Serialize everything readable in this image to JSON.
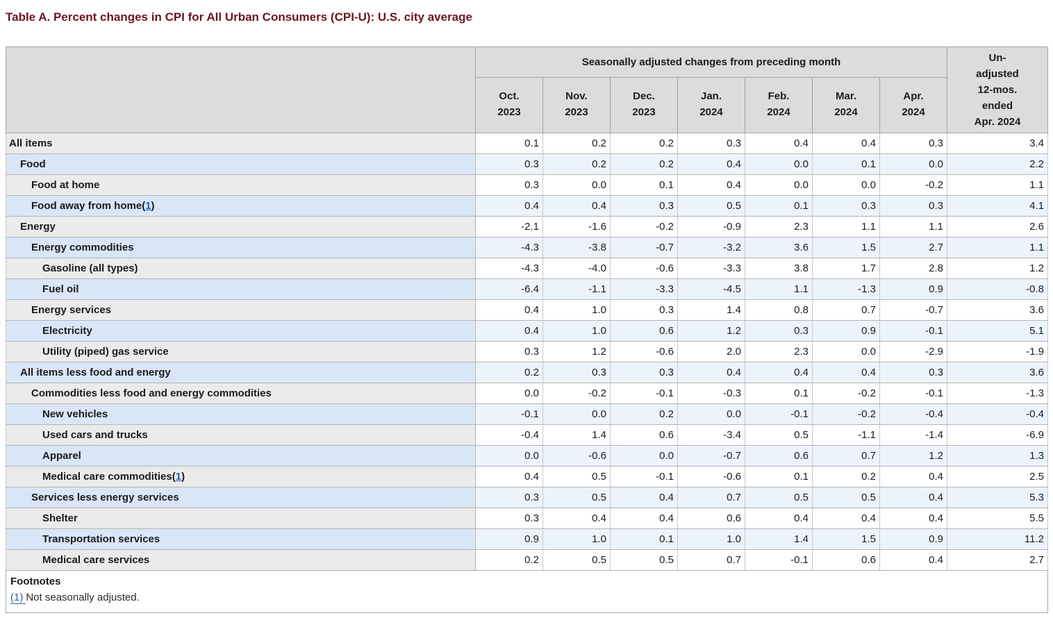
{
  "title": "Table A. Percent changes in CPI for All Urban Consumers (CPI-U): U.S. city average",
  "colors": {
    "title-color": "#6d1325",
    "header-bg": "#dcdcdc",
    "row-gray": "#ebebeb",
    "row-blue": "#d8e6f7",
    "data-blue": "#edf3fb",
    "link": "#2b5fae"
  },
  "table": {
    "group_header": "Seasonally adjusted changes from preceding month",
    "unadjusted_header_lines": [
      "Un-",
      "adjusted",
      "12-mos.",
      "ended",
      "Apr. 2024"
    ],
    "month_headers": [
      {
        "month": "Oct.",
        "year": "2023"
      },
      {
        "month": "Nov.",
        "year": "2023"
      },
      {
        "month": "Dec.",
        "year": "2023"
      },
      {
        "month": "Jan.",
        "year": "2024"
      },
      {
        "month": "Feb.",
        "year": "2024"
      },
      {
        "month": "Mar.",
        "year": "2024"
      },
      {
        "month": "Apr.",
        "year": "2024"
      }
    ],
    "rows": [
      {
        "label": "All items",
        "indent": 0,
        "footnote_ref": null,
        "values": [
          "0.1",
          "0.2",
          "0.2",
          "0.3",
          "0.4",
          "0.4",
          "0.3",
          "3.4"
        ]
      },
      {
        "label": "Food",
        "indent": 1,
        "footnote_ref": null,
        "values": [
          "0.3",
          "0.2",
          "0.2",
          "0.4",
          "0.0",
          "0.1",
          "0.0",
          "2.2"
        ]
      },
      {
        "label": "Food at home",
        "indent": 2,
        "footnote_ref": null,
        "values": [
          "0.3",
          "0.0",
          "0.1",
          "0.4",
          "0.0",
          "0.0",
          "-0.2",
          "1.1"
        ]
      },
      {
        "label": "Food away from home",
        "indent": 2,
        "footnote_ref": "1",
        "values": [
          "0.4",
          "0.4",
          "0.3",
          "0.5",
          "0.1",
          "0.3",
          "0.3",
          "4.1"
        ]
      },
      {
        "label": "Energy",
        "indent": 1,
        "footnote_ref": null,
        "values": [
          "-2.1",
          "-1.6",
          "-0.2",
          "-0.9",
          "2.3",
          "1.1",
          "1.1",
          "2.6"
        ]
      },
      {
        "label": "Energy commodities",
        "indent": 2,
        "footnote_ref": null,
        "values": [
          "-4.3",
          "-3.8",
          "-0.7",
          "-3.2",
          "3.6",
          "1.5",
          "2.7",
          "1.1"
        ]
      },
      {
        "label": "Gasoline (all types)",
        "indent": 3,
        "footnote_ref": null,
        "values": [
          "-4.3",
          "-4.0",
          "-0.6",
          "-3.3",
          "3.8",
          "1.7",
          "2.8",
          "1.2"
        ]
      },
      {
        "label": "Fuel oil",
        "indent": 3,
        "footnote_ref": null,
        "values": [
          "-6.4",
          "-1.1",
          "-3.3",
          "-4.5",
          "1.1",
          "-1.3",
          "0.9",
          "-0.8"
        ]
      },
      {
        "label": "Energy services",
        "indent": 2,
        "footnote_ref": null,
        "values": [
          "0.4",
          "1.0",
          "0.3",
          "1.4",
          "0.8",
          "0.7",
          "-0.7",
          "3.6"
        ]
      },
      {
        "label": "Electricity",
        "indent": 3,
        "footnote_ref": null,
        "values": [
          "0.4",
          "1.0",
          "0.6",
          "1.2",
          "0.3",
          "0.9",
          "-0.1",
          "5.1"
        ]
      },
      {
        "label": "Utility (piped) gas service",
        "indent": 3,
        "footnote_ref": null,
        "values": [
          "0.3",
          "1.2",
          "-0.6",
          "2.0",
          "2.3",
          "0.0",
          "-2.9",
          "-1.9"
        ]
      },
      {
        "label": "All items less food and energy",
        "indent": 1,
        "footnote_ref": null,
        "values": [
          "0.2",
          "0.3",
          "0.3",
          "0.4",
          "0.4",
          "0.4",
          "0.3",
          "3.6"
        ]
      },
      {
        "label": "Commodities less food and energy commodities",
        "indent": 2,
        "footnote_ref": null,
        "values": [
          "0.0",
          "-0.2",
          "-0.1",
          "-0.3",
          "0.1",
          "-0.2",
          "-0.1",
          "-1.3"
        ]
      },
      {
        "label": "New vehicles",
        "indent": 3,
        "footnote_ref": null,
        "values": [
          "-0.1",
          "0.0",
          "0.2",
          "0.0",
          "-0.1",
          "-0.2",
          "-0.4",
          "-0.4"
        ]
      },
      {
        "label": "Used cars and trucks",
        "indent": 3,
        "footnote_ref": null,
        "values": [
          "-0.4",
          "1.4",
          "0.6",
          "-3.4",
          "0.5",
          "-1.1",
          "-1.4",
          "-6.9"
        ]
      },
      {
        "label": "Apparel",
        "indent": 3,
        "footnote_ref": null,
        "values": [
          "0.0",
          "-0.6",
          "0.0",
          "-0.7",
          "0.6",
          "0.7",
          "1.2",
          "1.3"
        ]
      },
      {
        "label": "Medical care commodities",
        "indent": 3,
        "footnote_ref": "1",
        "values": [
          "0.4",
          "0.5",
          "-0.1",
          "-0.6",
          "0.1",
          "0.2",
          "0.4",
          "2.5"
        ]
      },
      {
        "label": "Services less energy services",
        "indent": 2,
        "footnote_ref": null,
        "values": [
          "0.3",
          "0.5",
          "0.4",
          "0.7",
          "0.5",
          "0.5",
          "0.4",
          "5.3"
        ]
      },
      {
        "label": "Shelter",
        "indent": 3,
        "footnote_ref": null,
        "values": [
          "0.3",
          "0.4",
          "0.4",
          "0.6",
          "0.4",
          "0.4",
          "0.4",
          "5.5"
        ]
      },
      {
        "label": "Transportation services",
        "indent": 3,
        "footnote_ref": null,
        "values": [
          "0.9",
          "1.0",
          "0.1",
          "1.0",
          "1.4",
          "1.5",
          "0.9",
          "11.2"
        ]
      },
      {
        "label": "Medical care services",
        "indent": 3,
        "footnote_ref": null,
        "values": [
          "0.2",
          "0.5",
          "0.5",
          "0.7",
          "-0.1",
          "0.6",
          "0.4",
          "2.7"
        ]
      }
    ]
  },
  "footnotes": {
    "heading": "Footnotes",
    "items": [
      {
        "marker": "(1)",
        "text": "Not seasonally adjusted."
      }
    ]
  },
  "chart_data": {
    "type": "table",
    "title": "Table A. Percent changes in CPI for All Urban Consumers (CPI-U): U.S. city average",
    "column_groups": [
      "Seasonally adjusted changes from preceding month",
      "Un-adjusted 12-mos. ended Apr. 2024"
    ],
    "columns": [
      "Oct. 2023",
      "Nov. 2023",
      "Dec. 2023",
      "Jan. 2024",
      "Feb. 2024",
      "Mar. 2024",
      "Apr. 2024",
      "Un-adjusted 12-mos. ended Apr. 2024"
    ],
    "series": [
      {
        "name": "All items",
        "values": [
          0.1,
          0.2,
          0.2,
          0.3,
          0.4,
          0.4,
          0.3,
          3.4
        ]
      },
      {
        "name": "Food",
        "values": [
          0.3,
          0.2,
          0.2,
          0.4,
          0.0,
          0.1,
          0.0,
          2.2
        ]
      },
      {
        "name": "Food at home",
        "values": [
          0.3,
          0.0,
          0.1,
          0.4,
          0.0,
          0.0,
          -0.2,
          1.1
        ]
      },
      {
        "name": "Food away from home(1)",
        "values": [
          0.4,
          0.4,
          0.3,
          0.5,
          0.1,
          0.3,
          0.3,
          4.1
        ]
      },
      {
        "name": "Energy",
        "values": [
          -2.1,
          -1.6,
          -0.2,
          -0.9,
          2.3,
          1.1,
          1.1,
          2.6
        ]
      },
      {
        "name": "Energy commodities",
        "values": [
          -4.3,
          -3.8,
          -0.7,
          -3.2,
          3.6,
          1.5,
          2.7,
          1.1
        ]
      },
      {
        "name": "Gasoline (all types)",
        "values": [
          -4.3,
          -4.0,
          -0.6,
          -3.3,
          3.8,
          1.7,
          2.8,
          1.2
        ]
      },
      {
        "name": "Fuel oil",
        "values": [
          -6.4,
          -1.1,
          -3.3,
          -4.5,
          1.1,
          -1.3,
          0.9,
          -0.8
        ]
      },
      {
        "name": "Energy services",
        "values": [
          0.4,
          1.0,
          0.3,
          1.4,
          0.8,
          0.7,
          -0.7,
          3.6
        ]
      },
      {
        "name": "Electricity",
        "values": [
          0.4,
          1.0,
          0.6,
          1.2,
          0.3,
          0.9,
          -0.1,
          5.1
        ]
      },
      {
        "name": "Utility (piped) gas service",
        "values": [
          0.3,
          1.2,
          -0.6,
          2.0,
          2.3,
          0.0,
          -2.9,
          -1.9
        ]
      },
      {
        "name": "All items less food and energy",
        "values": [
          0.2,
          0.3,
          0.3,
          0.4,
          0.4,
          0.4,
          0.3,
          3.6
        ]
      },
      {
        "name": "Commodities less food and energy commodities",
        "values": [
          0.0,
          -0.2,
          -0.1,
          -0.3,
          0.1,
          -0.2,
          -0.1,
          -1.3
        ]
      },
      {
        "name": "New vehicles",
        "values": [
          -0.1,
          0.0,
          0.2,
          0.0,
          -0.1,
          -0.2,
          -0.4,
          -0.4
        ]
      },
      {
        "name": "Used cars and trucks",
        "values": [
          -0.4,
          1.4,
          0.6,
          -3.4,
          0.5,
          -1.1,
          -1.4,
          -6.9
        ]
      },
      {
        "name": "Apparel",
        "values": [
          0.0,
          -0.6,
          0.0,
          -0.7,
          0.6,
          0.7,
          1.2,
          1.3
        ]
      },
      {
        "name": "Medical care commodities(1)",
        "values": [
          0.4,
          0.5,
          -0.1,
          -0.6,
          0.1,
          0.2,
          0.4,
          2.5
        ]
      },
      {
        "name": "Services less energy services",
        "values": [
          0.3,
          0.5,
          0.4,
          0.7,
          0.5,
          0.5,
          0.4,
          5.3
        ]
      },
      {
        "name": "Shelter",
        "values": [
          0.3,
          0.4,
          0.4,
          0.6,
          0.4,
          0.4,
          0.4,
          5.5
        ]
      },
      {
        "name": "Transportation services",
        "values": [
          0.9,
          1.0,
          0.1,
          1.0,
          1.4,
          1.5,
          0.9,
          11.2
        ]
      },
      {
        "name": "Medical care services",
        "values": [
          0.2,
          0.5,
          0.5,
          0.7,
          -0.1,
          0.6,
          0.4,
          2.7
        ]
      }
    ],
    "footnote": "(1) Not seasonally adjusted."
  }
}
